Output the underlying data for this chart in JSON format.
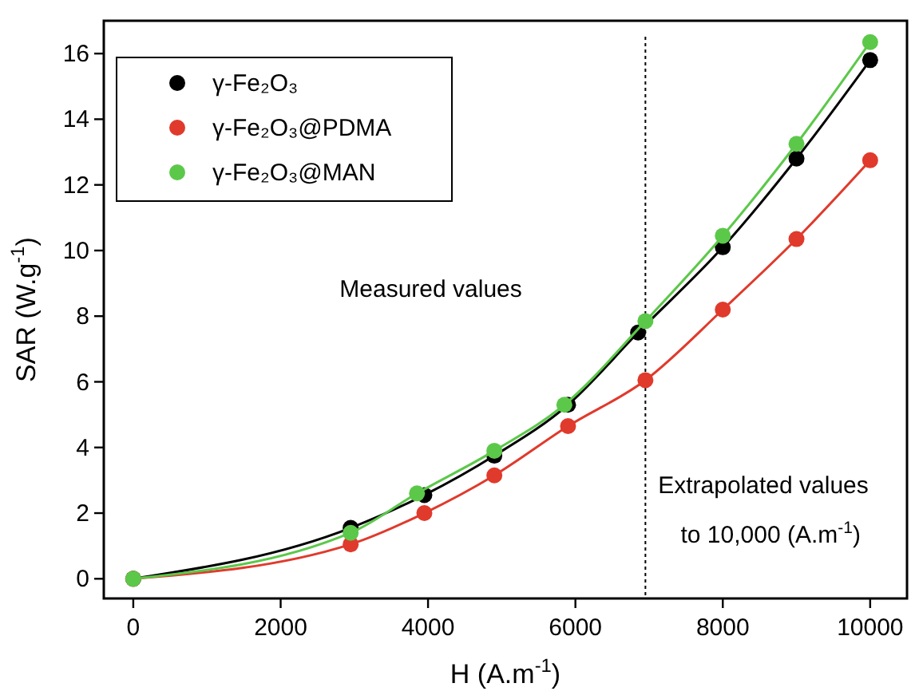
{
  "chart_data": {
    "type": "line",
    "xlabel": "H (A.m$^{-1}$)",
    "ylabel": "SAR (W.g$^{-1}$)",
    "xlim": [
      -400,
      10500
    ],
    "ylim": [
      -0.6,
      17
    ],
    "xticks": [
      0,
      2000,
      4000,
      6000,
      8000,
      10000
    ],
    "yticks": [
      0,
      2,
      4,
      6,
      8,
      10,
      12,
      14,
      16
    ],
    "grid": false,
    "legend": "top left",
    "marker": "circle",
    "line_style": "solid",
    "series": [
      {
        "name": "γ-Fe₂O₃",
        "color": "#000000",
        "x": [
          0,
          2950,
          3950,
          4900,
          5900,
          6850,
          8000,
          9000,
          10000
        ],
        "values": [
          0,
          1.55,
          2.55,
          3.75,
          5.3,
          7.5,
          10.1,
          12.8,
          15.8
        ]
      },
      {
        "name": "γ-Fe₂O₃@PDMA",
        "color": "#e03a2c",
        "x": [
          0,
          2950,
          3950,
          4900,
          5900,
          6950,
          8000,
          9000,
          10000
        ],
        "values": [
          0,
          1.05,
          2.0,
          3.15,
          4.65,
          6.05,
          8.2,
          10.35,
          12.75
        ]
      },
      {
        "name": "γ-Fe₂O₃@MAN",
        "color": "#5cc84a",
        "x": [
          0,
          2950,
          3850,
          4900,
          5850,
          6950,
          8000,
          9000,
          10000
        ],
        "values": [
          0,
          1.4,
          2.6,
          3.9,
          5.3,
          7.85,
          10.45,
          13.25,
          16.35
        ]
      }
    ],
    "ref_lines": [
      {
        "axis": "x",
        "value": 6950,
        "line_style": "dotted",
        "color": "#000000"
      }
    ],
    "annotations": [
      "Measured values",
      "Extrapolated values",
      "to 10,000 (A.m$^{-1}$)"
    ]
  }
}
